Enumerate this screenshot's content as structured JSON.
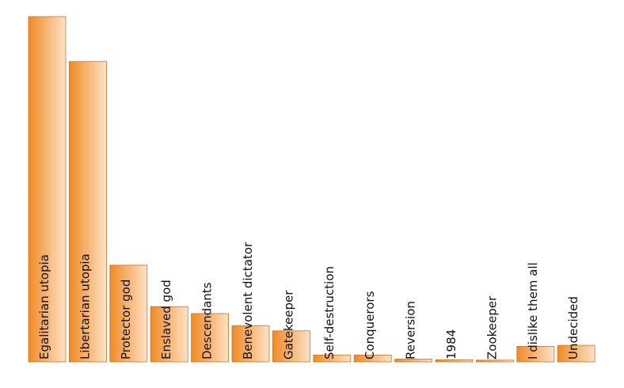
{
  "chart_data": {
    "type": "bar",
    "categories": [
      "Egalitarian utopia",
      "Libertarian utopia",
      "Protector god",
      "Enslaved god",
      "Descendants",
      "Benevolent dictator",
      "Gatekeeper",
      "Self-destruction",
      "Conquerors",
      "Reversion",
      "1984",
      "Zookeeper",
      "I dislike them all",
      "Undecided"
    ],
    "values": [
      100,
      87,
      28,
      16,
      14,
      10.5,
      9,
      2,
      2,
      0.8,
      0.6,
      0.5,
      4.5,
      4.8
    ],
    "ylim": [
      0,
      100
    ],
    "title": "",
    "xlabel": "",
    "ylabel": "",
    "grid": false,
    "colors": {
      "bar_dark": "#f08a24",
      "bar_light": "#fde2c6",
      "bar_stroke": "#c8742a",
      "label": "#111111"
    }
  }
}
